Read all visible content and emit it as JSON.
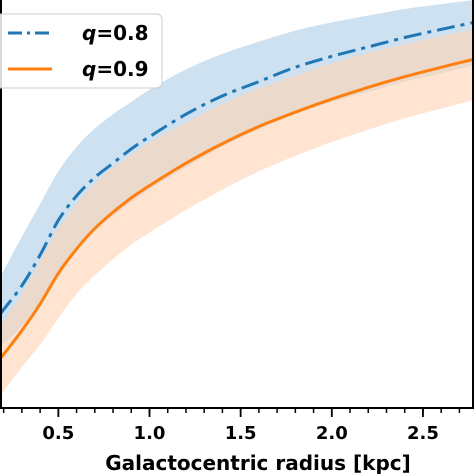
{
  "chart_data": {
    "type": "line",
    "xlabel": "Galactocentric radius [kpc]",
    "ylabel": "",
    "xlim": [
      0.18,
      2.78
    ],
    "ylim": [
      0.0,
      1.0
    ],
    "x_ticks": [
      0.5,
      1.0,
      1.5,
      2.0,
      2.5
    ],
    "x_tick_labels": [
      "0.5",
      "1.0",
      "1.5",
      "2.0",
      "2.5"
    ],
    "x_minor_step": 0.1,
    "grid": false,
    "legend_position": "upper-left",
    "series": [
      {
        "name": "q=0.8",
        "name_var": "q",
        "name_val": "=0.8",
        "color": "#1f77b4",
        "band_color": "#aecde8",
        "linestyle": "dashdot",
        "x": [
          0.18,
          0.3,
          0.4,
          0.5,
          0.6,
          0.7,
          0.8,
          0.9,
          1.0,
          1.2,
          1.4,
          1.6,
          1.8,
          2.0,
          2.2,
          2.4,
          2.6,
          2.78
        ],
        "values": [
          0.23,
          0.3,
          0.375,
          0.46,
          0.52,
          0.565,
          0.6,
          0.635,
          0.665,
          0.72,
          0.765,
          0.8,
          0.835,
          0.862,
          0.885,
          0.908,
          0.928,
          0.945
        ],
        "upper": [
          0.32,
          0.42,
          0.5,
          0.58,
          0.64,
          0.685,
          0.72,
          0.75,
          0.78,
          0.83,
          0.868,
          0.898,
          0.925,
          0.945,
          0.962,
          0.978,
          0.99,
          1.0
        ],
        "lower": [
          0.15,
          0.2,
          0.26,
          0.33,
          0.39,
          0.435,
          0.47,
          0.505,
          0.535,
          0.59,
          0.64,
          0.683,
          0.72,
          0.75,
          0.775,
          0.8,
          0.82,
          0.84
        ]
      },
      {
        "name": "q=0.9",
        "name_var": "q",
        "name_val": "=0.9",
        "color": "#ff7f0e",
        "band_color": "#ffd4b3",
        "linestyle": "solid",
        "x": [
          0.18,
          0.3,
          0.4,
          0.5,
          0.6,
          0.7,
          0.8,
          0.9,
          1.0,
          1.2,
          1.4,
          1.6,
          1.8,
          2.0,
          2.2,
          2.4,
          2.6,
          2.78
        ],
        "values": [
          0.12,
          0.19,
          0.255,
          0.33,
          0.39,
          0.44,
          0.48,
          0.515,
          0.545,
          0.6,
          0.648,
          0.69,
          0.725,
          0.757,
          0.786,
          0.812,
          0.835,
          0.855
        ],
        "upper": [
          0.2,
          0.28,
          0.36,
          0.44,
          0.5,
          0.55,
          0.59,
          0.62,
          0.65,
          0.7,
          0.745,
          0.783,
          0.815,
          0.845,
          0.87,
          0.892,
          0.912,
          0.928
        ],
        "lower": [
          0.03,
          0.1,
          0.155,
          0.22,
          0.28,
          0.325,
          0.365,
          0.4,
          0.43,
          0.485,
          0.535,
          0.58,
          0.618,
          0.652,
          0.682,
          0.71,
          0.734,
          0.755
        ]
      }
    ]
  }
}
